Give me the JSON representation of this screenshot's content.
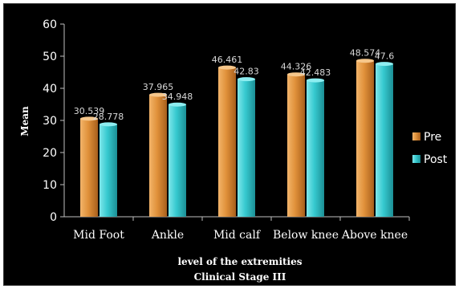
{
  "chart_data": {
    "type": "bar",
    "categories": [
      "Mid Foot",
      "Ankle",
      "Mid calf",
      "Below knee",
      "Above knee"
    ],
    "series": [
      {
        "name": "Pre",
        "values": [
          30.539,
          37.965,
          46.461,
          44.326,
          48.574
        ],
        "labels": [
          "30.539",
          "37.965",
          "46.461",
          "44.326",
          "48.574"
        ],
        "color": "#E0913A"
      },
      {
        "name": "Post",
        "values": [
          28.778,
          34.948,
          42.83,
          42.483,
          47.6
        ],
        "labels": [
          "28.778",
          "34.948",
          "42.83",
          "42.483",
          "47.6"
        ],
        "color": "#35C9CF"
      }
    ],
    "ylabel": "Mean",
    "xlabel": "level of the extremities",
    "subtitle": "Clinical Stage III",
    "ylim": [
      0,
      60
    ],
    "yticks": [
      "0",
      "10",
      "20",
      "30",
      "40",
      "50",
      "60"
    ],
    "legend_position": "right",
    "grid": false
  }
}
